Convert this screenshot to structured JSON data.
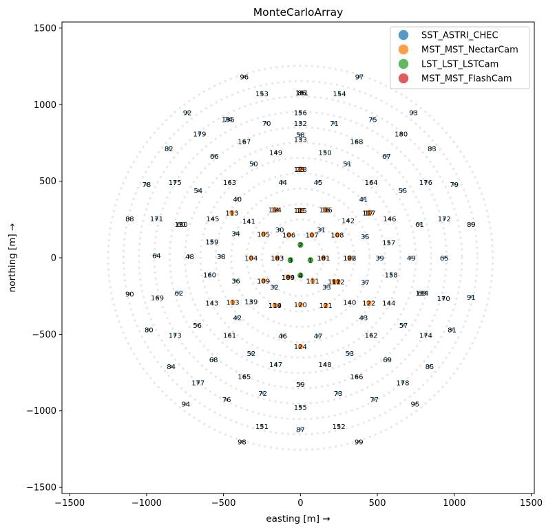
{
  "chart_data": {
    "type": "scatter",
    "title": "MonteCarloArray",
    "xlabel": "easting [m] →",
    "ylabel": "northing [m] →",
    "xlim": [
      -1550,
      1520
    ],
    "ylim": [
      -1540,
      1540
    ],
    "xticks": [
      -1500,
      -1000,
      -500,
      0,
      500,
      1000,
      1500
    ],
    "yticks": [
      -1500,
      -1000,
      -500,
      0,
      500,
      1000,
      1500
    ],
    "tick_labels": [
      "−1500",
      "−1000",
      "−500",
      "0",
      "500",
      "1000",
      "1500"
    ],
    "legend_position": "upper right",
    "grid": false,
    "background_rings": [
      150,
      250,
      350,
      450,
      550,
      650,
      750,
      850,
      950,
      1050,
      1150,
      1250
    ],
    "series": [
      {
        "name": "SST_ASTRI_CHEC",
        "color": "#1f77b4",
        "points": [
          [
            -365,
            1184,
            "96"
          ],
          [
            383,
            1184,
            "97"
          ],
          [
            9,
            1080,
            "86"
          ],
          [
            9,
            1080,
            "161"
          ],
          [
            -250,
            1072,
            "153"
          ],
          [
            254,
            1072,
            "154"
          ],
          [
            -735,
            950,
            "92"
          ],
          [
            735,
            950,
            "93"
          ],
          [
            -470,
            905,
            "74"
          ],
          [
            -470,
            905,
            "135"
          ],
          [
            470,
            905,
            "75"
          ],
          [
            0,
            950,
            "156"
          ],
          [
            -220,
            880,
            "70"
          ],
          [
            220,
            880,
            "71"
          ],
          [
            0,
            880,
            "132"
          ],
          [
            -655,
            810,
            "179"
          ],
          [
            655,
            810,
            "180"
          ],
          [
            0,
            805,
            "58"
          ],
          [
            0,
            775,
            "133"
          ],
          [
            -365,
            760,
            "167"
          ],
          [
            365,
            760,
            "168"
          ],
          [
            -855,
            715,
            "82"
          ],
          [
            855,
            715,
            "83"
          ],
          [
            -160,
            690,
            "149"
          ],
          [
            160,
            690,
            "150"
          ],
          [
            -560,
            665,
            "66"
          ],
          [
            560,
            665,
            "67"
          ],
          [
            -305,
            615,
            "50"
          ],
          [
            305,
            615,
            "51"
          ],
          [
            -1000,
            480,
            "78"
          ],
          [
            -815,
            495,
            "175"
          ],
          [
            815,
            495,
            "176"
          ],
          [
            1000,
            480,
            "79"
          ],
          [
            -115,
            495,
            "44"
          ],
          [
            115,
            495,
            "45"
          ],
          [
            -460,
            495,
            "163"
          ],
          [
            460,
            495,
            "164"
          ],
          [
            -665,
            440,
            "54"
          ],
          [
            665,
            440,
            "55"
          ],
          [
            -410,
            385,
            "40"
          ],
          [
            410,
            385,
            "41"
          ],
          [
            -1110,
            255,
            "88"
          ],
          [
            -935,
            255,
            "171"
          ],
          [
            -775,
            220,
            "130"
          ],
          [
            -775,
            220,
            "60"
          ],
          [
            -570,
            255,
            "145"
          ],
          [
            -335,
            240,
            "141"
          ],
          [
            -135,
            185,
            "30"
          ],
          [
            135,
            185,
            "31"
          ],
          [
            310,
            245,
            "142"
          ],
          [
            580,
            255,
            "146"
          ],
          [
            775,
            220,
            "61"
          ],
          [
            935,
            255,
            "172"
          ],
          [
            1110,
            220,
            "89"
          ],
          [
            -420,
            160,
            "34"
          ],
          [
            420,
            140,
            "35"
          ],
          [
            -575,
            105,
            "159"
          ],
          [
            575,
            100,
            "157"
          ],
          [
            -935,
            15,
            "64"
          ],
          [
            -720,
            10,
            "48"
          ],
          [
            -515,
            10,
            "38"
          ],
          [
            515,
            0,
            "39"
          ],
          [
            720,
            0,
            "49"
          ],
          [
            935,
            0,
            "65"
          ],
          [
            -590,
            -110,
            "160"
          ],
          [
            590,
            -110,
            "158"
          ],
          [
            -420,
            -150,
            "36"
          ],
          [
            420,
            -160,
            "37"
          ],
          [
            -170,
            -190,
            "32"
          ],
          [
            170,
            -190,
            "33"
          ],
          [
            -1110,
            -235,
            "90"
          ],
          [
            -930,
            -260,
            "169"
          ],
          [
            -790,
            -230,
            "62"
          ],
          [
            -575,
            -295,
            "143"
          ],
          [
            -320,
            -285,
            "139"
          ],
          [
            320,
            -290,
            "140"
          ],
          [
            575,
            -295,
            "144"
          ],
          [
            790,
            -230,
            "63"
          ],
          [
            790,
            -230,
            "134"
          ],
          [
            930,
            -265,
            "170"
          ],
          [
            1110,
            -255,
            "91"
          ],
          [
            -410,
            -390,
            "42"
          ],
          [
            410,
            -390,
            "43"
          ],
          [
            -670,
            -440,
            "56"
          ],
          [
            670,
            -440,
            "57"
          ],
          [
            -985,
            -470,
            "80"
          ],
          [
            -815,
            -505,
            "173"
          ],
          [
            -460,
            -505,
            "161"
          ],
          [
            -115,
            -510,
            "46"
          ],
          [
            115,
            -510,
            "47"
          ],
          [
            460,
            -505,
            "162"
          ],
          [
            815,
            -505,
            "174"
          ],
          [
            985,
            -470,
            "81"
          ],
          [
            -320,
            -625,
            "52"
          ],
          [
            320,
            -625,
            "53"
          ],
          [
            -565,
            -665,
            "68"
          ],
          [
            565,
            -665,
            "69"
          ],
          [
            -160,
            -695,
            "147"
          ],
          [
            160,
            -695,
            "148"
          ],
          [
            -840,
            -710,
            "84"
          ],
          [
            840,
            -710,
            "85"
          ],
          [
            -365,
            -775,
            "165"
          ],
          [
            365,
            -775,
            "166"
          ],
          [
            0,
            -825,
            "59"
          ],
          [
            -665,
            -815,
            "177"
          ],
          [
            665,
            -815,
            "178"
          ],
          [
            -245,
            -885,
            "72"
          ],
          [
            245,
            -885,
            "73"
          ],
          [
            -480,
            -925,
            "76"
          ],
          [
            480,
            -925,
            "77"
          ],
          [
            0,
            -975,
            "155"
          ],
          [
            -745,
            -955,
            "94"
          ],
          [
            745,
            -955,
            "95"
          ],
          [
            -250,
            -1100,
            "151"
          ],
          [
            250,
            -1100,
            "152"
          ],
          [
            0,
            -1120,
            "87"
          ],
          [
            -380,
            -1200,
            "98"
          ],
          [
            380,
            -1200,
            "99"
          ]
        ]
      },
      {
        "name": "MST_MST_NectarCam",
        "color": "#ff7f0e",
        "points": [
          [
            0,
            580,
            "23"
          ],
          [
            0,
            580,
            "128"
          ],
          [
            -445,
            295,
            "113"
          ],
          [
            -165,
            315,
            "14"
          ],
          [
            -165,
            315,
            "114"
          ],
          [
            0,
            310,
            "15"
          ],
          [
            0,
            310,
            "115"
          ],
          [
            165,
            315,
            "16"
          ],
          [
            165,
            315,
            "116"
          ],
          [
            445,
            295,
            "17"
          ],
          [
            445,
            295,
            "117"
          ],
          [
            -240,
            155,
            "105"
          ],
          [
            -75,
            150,
            "106"
          ],
          [
            75,
            150,
            "107"
          ],
          [
            240,
            150,
            "108"
          ],
          [
            -320,
            0,
            "104"
          ],
          [
            -150,
            0,
            "103"
          ],
          [
            -150,
            0,
            "183"
          ],
          [
            150,
            0,
            "101"
          ],
          [
            150,
            0,
            "161"
          ],
          [
            320,
            0,
            "102"
          ],
          [
            320,
            0,
            "128"
          ],
          [
            -80,
            -125,
            "184"
          ],
          [
            -80,
            -125,
            "109"
          ],
          [
            80,
            -150,
            "111"
          ],
          [
            -240,
            -150,
            "109"
          ],
          [
            220,
            -155,
            "112"
          ],
          [
            245,
            -155,
            "112"
          ],
          [
            -440,
            -290,
            "113"
          ],
          [
            -165,
            -310,
            "119"
          ],
          [
            -165,
            -310,
            "114"
          ],
          [
            0,
            -305,
            "120"
          ],
          [
            165,
            -310,
            "121"
          ],
          [
            445,
            -295,
            "122"
          ],
          [
            0,
            -580,
            "124"
          ]
        ]
      },
      {
        "name": "LST_LST_LSTCam",
        "color": "#2ca02c",
        "points": [
          [
            0,
            85,
            "2"
          ],
          [
            -65,
            -15,
            "3"
          ],
          [
            65,
            -15,
            "1"
          ],
          [
            0,
            -115,
            "4"
          ]
        ]
      },
      {
        "name": "MST_MST_FlashCam",
        "color": "#d62728",
        "points": []
      }
    ]
  }
}
